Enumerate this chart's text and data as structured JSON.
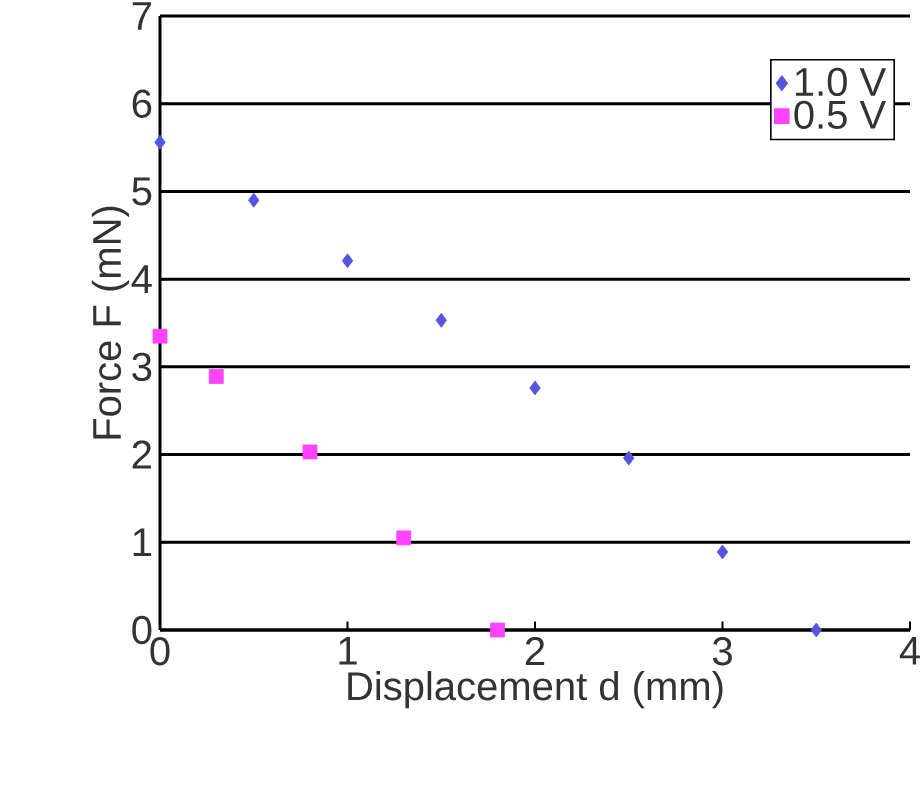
{
  "chart_data": {
    "type": "scatter",
    "xlabel": "Displacement  d (mm)",
    "ylabel": "Force F (mN)",
    "series": [
      {
        "name": "1.0 V",
        "color": "#5555dd",
        "marker": "diamond",
        "x": [
          0,
          0.5,
          1,
          1.5,
          2,
          2.5,
          3,
          3.5
        ],
        "values": [
          5.56,
          4.9,
          4.21,
          3.53,
          2.76,
          1.96,
          0.89,
          0
        ]
      },
      {
        "name": "0.5 V",
        "color": "#ff44ff",
        "marker": "square",
        "x": [
          0,
          0.3,
          0.8,
          1.3,
          1.8
        ],
        "values": [
          3.35,
          2.89,
          2.03,
          1.05,
          0
        ]
      }
    ],
    "xlim": [
      0,
      4
    ],
    "ylim": [
      0,
      7
    ],
    "xticks": [
      0,
      1,
      2,
      3,
      4
    ],
    "yticks": [
      0,
      1,
      2,
      3,
      4,
      5,
      6,
      7
    ],
    "grid": "y",
    "legend": "top right"
  }
}
